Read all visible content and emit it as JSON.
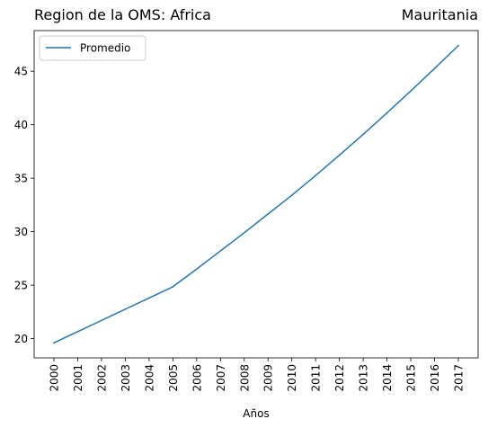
{
  "chart_data": {
    "type": "line",
    "title_left": "Region de la OMS: Africa",
    "title_right": "Mauritania",
    "xlabel": "Años",
    "ylabel": "",
    "x": [
      "2000",
      "2001",
      "2002",
      "2003",
      "2004",
      "2005",
      "2006",
      "2007",
      "2008",
      "2009",
      "2010",
      "2011",
      "2012",
      "2013",
      "2014",
      "2015",
      "2016",
      "2017"
    ],
    "series": [
      {
        "name": "Promedio",
        "color": "#1f77b4",
        "values": [
          19.6,
          20.65,
          21.7,
          22.75,
          23.8,
          24.85,
          26.5,
          28.2,
          29.9,
          31.65,
          33.4,
          35.25,
          37.15,
          39.1,
          41.1,
          43.15,
          45.25,
          47.4
        ]
      }
    ],
    "ylim": [
      18.2,
      48.8
    ],
    "yticks": [
      20,
      25,
      30,
      35,
      40,
      45
    ],
    "grid": false,
    "legend_position": "top-left"
  }
}
